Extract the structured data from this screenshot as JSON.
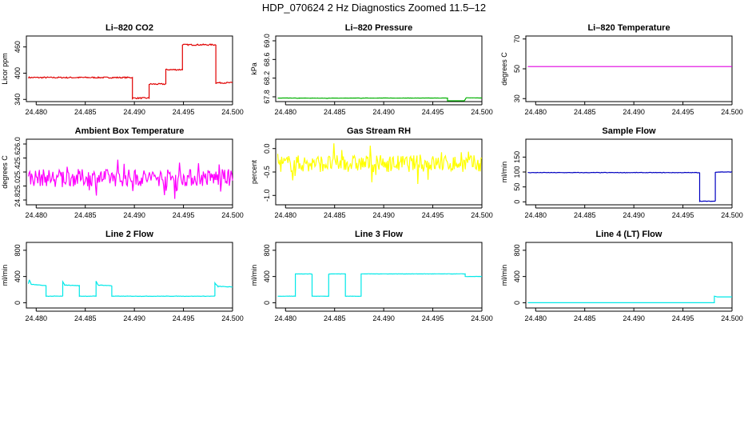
{
  "page": {
    "title": "HDP_070624  2 Hz Diagnostics Zoomed 11.5–12"
  },
  "colors": {
    "co2": "#e00000",
    "pressure": "#00b000",
    "li_temp": "#e000e0",
    "box_temp": "#ff00ff",
    "rh": "#ffff00",
    "sample_flow": "#0000c0",
    "line2": "#00e8e8",
    "line3": "#00e8e8",
    "line4": "#00e8e8"
  },
  "chart_data": [
    {
      "id": "co2",
      "type": "line",
      "title": "Li–820 CO2",
      "ylabel": "Licor ppm",
      "xlim": [
        24.479,
        24.5
      ],
      "ylim": [
        335,
        485
      ],
      "xticks": [
        "24.480",
        "24.485",
        "24.490",
        "24.495",
        "24.500"
      ],
      "yticks": [
        "340",
        "400",
        "460"
      ],
      "series": [
        {
          "color_key": "co2",
          "noise": 1.5,
          "x": [
            24.4792,
            24.4898,
            24.4898,
            24.4915,
            24.4915,
            24.4932,
            24.4932,
            24.4949,
            24.4949,
            24.4983,
            24.4983,
            24.5
          ],
          "y": [
            390,
            390,
            343,
            343,
            375,
            375,
            408,
            408,
            465,
            465,
            378,
            378
          ]
        }
      ]
    },
    {
      "id": "pressure",
      "type": "line",
      "title": "Li–820 Pressure",
      "ylabel": "kPa",
      "xlim": [
        24.479,
        24.5
      ],
      "ylim": [
        67.75,
        89.05
      ],
      "yscale_note": "compressed",
      "xticks": [
        "24.480",
        "24.485",
        "24.490",
        "24.495",
        "24.500"
      ],
      "yticks": [
        "67.8",
        "68.2",
        "68.6",
        "69.0"
      ],
      "series": [
        {
          "color_key": "pressure",
          "noise": 0.04,
          "x": [
            24.4792,
            24.481,
            24.4812,
            24.4814,
            24.484,
            24.4842,
            24.4844,
            24.4875,
            24.4877,
            24.488,
            24.4965,
            24.4965,
            24.4967,
            24.4967,
            24.4982,
            24.4984,
            24.4985,
            24.5
          ],
          "y": [
            68.9,
            68.89,
            68.82,
            68.88,
            68.87,
            68.8,
            68.88,
            68.89,
            68.82,
            68.9,
            68.9,
            67.9,
            67.85,
            67.92,
            67.95,
            68.95,
            69.0,
            68.93
          ]
        }
      ]
    },
    {
      "id": "li_temp",
      "type": "line",
      "title": "Li–820 Temperature",
      "ylabel": "degrees C",
      "xlim": [
        24.479,
        24.5
      ],
      "ylim": [
        28,
        72
      ],
      "xticks": [
        "24.480",
        "24.485",
        "24.490",
        "24.495",
        "24.500"
      ],
      "yticks": [
        "30",
        "50",
        "70"
      ],
      "series": [
        {
          "color_key": "li_temp",
          "noise": 0,
          "x": [
            24.4792,
            24.5
          ],
          "y": [
            51.5,
            51.5
          ]
        }
      ]
    },
    {
      "id": "box_temp",
      "type": "line",
      "title": "Ambient Box Temperature",
      "ylabel": "degrees C",
      "xlim": [
        24.479,
        24.5
      ],
      "ylim": [
        24.72,
        26.08
      ],
      "xticks": [
        "24.480",
        "24.485",
        "24.490",
        "24.495",
        "24.500"
      ],
      "yticks": [
        "24.8",
        "25.0",
        "25.4",
        "25.6",
        "26.0"
      ],
      "series": [
        {
          "color_key": "box_temp",
          "noise": 0.18,
          "spiky": true,
          "x": [
            24.4792,
            24.5
          ],
          "y": [
            25.28,
            25.28
          ]
        }
      ]
    },
    {
      "id": "rh",
      "type": "line",
      "title": "Gas Stream RH",
      "ylabel": "percent",
      "xlim": [
        24.479,
        24.5
      ],
      "ylim": [
        -1.2,
        0.2
      ],
      "xticks": [
        "24.480",
        "24.485",
        "24.490",
        "24.495",
        "24.500"
      ],
      "yticks": [
        "-1.0",
        "-0.5",
        "0.0"
      ],
      "series": [
        {
          "color_key": "rh",
          "noise": 0.18,
          "spiky": true,
          "x": [
            24.4792,
            24.5
          ],
          "y": [
            -0.32,
            -0.32
          ]
        }
      ]
    },
    {
      "id": "sample_flow",
      "type": "line",
      "title": "Sample Flow",
      "ylabel": "ml/min",
      "xlim": [
        24.479,
        24.5
      ],
      "ylim": [
        -10,
        210
      ],
      "xticks": [
        "24.480",
        "24.485",
        "24.490",
        "24.495",
        "24.500"
      ],
      "yticks": [
        "0",
        "50",
        "100",
        "150"
      ],
      "series": [
        {
          "color_key": "sample_flow",
          "noise": 0.8,
          "x": [
            24.4792,
            24.4967,
            24.4967,
            24.4983,
            24.4983,
            24.5
          ],
          "y": [
            98,
            98,
            2,
            2,
            100,
            100
          ]
        }
      ]
    },
    {
      "id": "line2",
      "type": "line",
      "title": "Line 2 Flow",
      "ylabel": "ml/min",
      "xlim": [
        24.479,
        24.5
      ],
      "ylim": [
        -80,
        920
      ],
      "xticks": [
        "24.480",
        "24.485",
        "24.490",
        "24.495",
        "24.500"
      ],
      "yticks": [
        "0",
        "400",
        "800"
      ],
      "series": [
        {
          "color_key": "line2",
          "noise": 3,
          "x": [
            24.4792,
            24.4793,
            24.4795,
            24.481,
            24.481,
            24.4827,
            24.4827,
            24.4829,
            24.4844,
            24.4844,
            24.4861,
            24.4861,
            24.4863,
            24.4877,
            24.4877,
            24.4982,
            24.4982,
            24.4985,
            24.5
          ],
          "y": [
            290,
            350,
            280,
            260,
            100,
            100,
            320,
            270,
            260,
            100,
            100,
            330,
            270,
            260,
            100,
            100,
            300,
            250,
            240
          ]
        }
      ]
    },
    {
      "id": "line3",
      "type": "line",
      "title": "Line 3 Flow",
      "ylabel": "ml/min",
      "xlim": [
        24.479,
        24.5
      ],
      "ylim": [
        -80,
        920
      ],
      "xticks": [
        "24.480",
        "24.485",
        "24.490",
        "24.495",
        "24.500"
      ],
      "yticks": [
        "0",
        "400",
        "800"
      ],
      "series": [
        {
          "color_key": "line3",
          "noise": 2,
          "x": [
            24.4792,
            24.481,
            24.481,
            24.4827,
            24.4827,
            24.4844,
            24.4844,
            24.4861,
            24.4861,
            24.4877,
            24.4877,
            24.4983,
            24.4983,
            24.5
          ],
          "y": [
            100,
            100,
            440,
            440,
            100,
            100,
            440,
            440,
            100,
            100,
            440,
            440,
            400,
            400
          ]
        }
      ]
    },
    {
      "id": "line4",
      "type": "line",
      "title": "Line 4 (LT) Flow",
      "ylabel": "ml/min",
      "xlim": [
        24.479,
        24.5
      ],
      "ylim": [
        -80,
        920
      ],
      "xticks": [
        "24.480",
        "24.485",
        "24.490",
        "24.495",
        "24.500"
      ],
      "yticks": [
        "0",
        "400",
        "800"
      ],
      "series": [
        {
          "color_key": "line4",
          "noise": 0,
          "x": [
            24.4792,
            24.4982,
            24.4982,
            24.4985,
            24.5
          ],
          "y": [
            0,
            0,
            100,
            90,
            90
          ]
        }
      ]
    }
  ]
}
